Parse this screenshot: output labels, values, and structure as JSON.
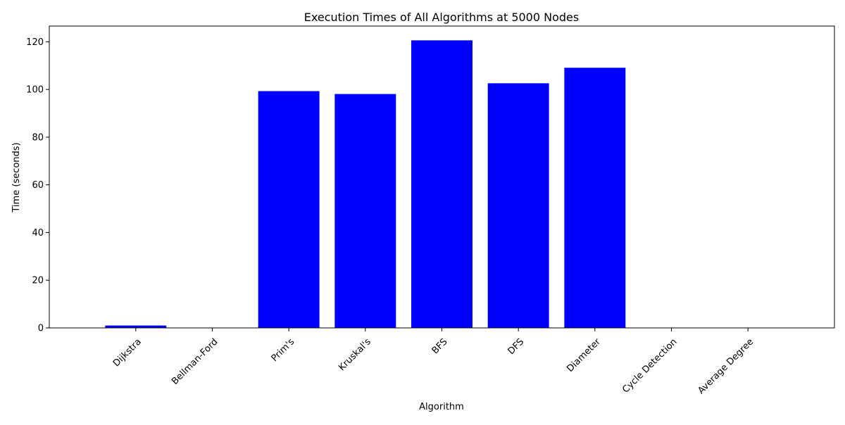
{
  "chart_data": {
    "type": "bar",
    "title": "Execution Times of All Algorithms at 5000 Nodes",
    "xlabel": "Algorithm",
    "ylabel": "Time (seconds)",
    "categories": [
      "Dijkstra",
      "Bellman-Ford",
      "Prim's",
      "Kruskal's",
      "BFS",
      "DFS",
      "Diameter",
      "Cycle Detection",
      "Average Degree"
    ],
    "values": [
      1.0,
      0.0,
      99.3,
      98.1,
      120.6,
      102.6,
      109.1,
      0.0,
      0.0
    ],
    "ylim": [
      0,
      126.6
    ],
    "yticks": [
      0,
      20,
      40,
      60,
      80,
      100,
      120
    ],
    "bar_color": "#0000ff",
    "grid": false,
    "legend": "none"
  }
}
